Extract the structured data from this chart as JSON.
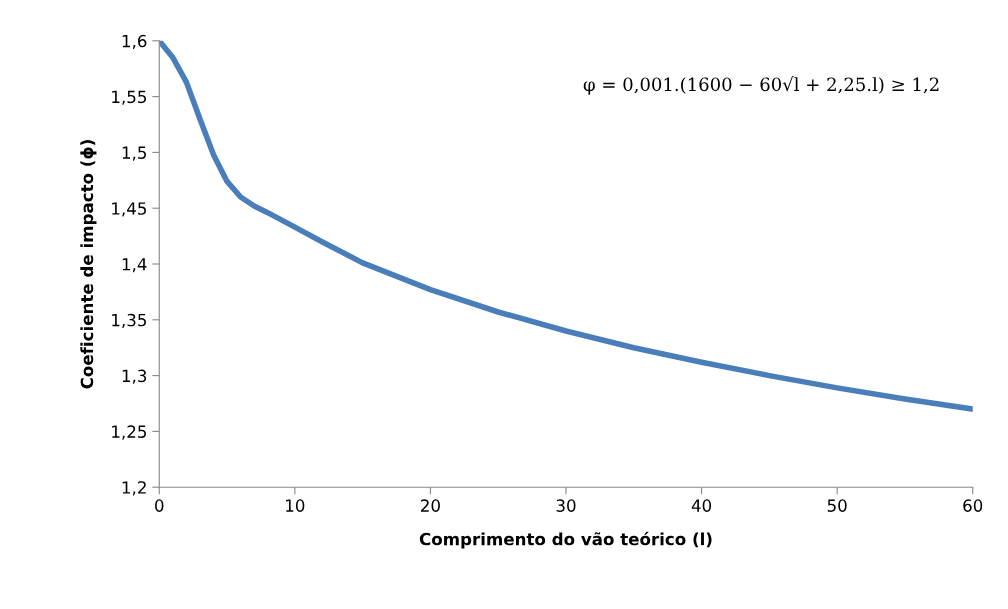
{
  "chart_data": {
    "type": "line",
    "x": [
      0,
      1,
      2,
      3,
      4,
      5,
      6,
      7,
      8,
      10,
      12,
      15,
      20,
      25,
      30,
      35,
      40,
      45,
      50,
      55,
      60
    ],
    "series": [
      {
        "color": "#4a7ebb",
        "values": [
          1.6,
          1.585,
          1.563,
          1.53,
          1.498,
          1.474,
          1.46,
          1.452,
          1.446,
          1.433,
          1.42,
          1.401,
          1.377,
          1.357,
          1.34,
          1.325,
          1.312,
          1.3,
          1.289,
          1.279,
          1.27
        ]
      }
    ],
    "xlabel": "Comprimento do vão teórico (l)",
    "ylabel": "Coeficiente de impacto (ϕ)",
    "annotations": [
      "φ = 0,001.(1600 − 60√l + 2,25.l) ≥ 1,2"
    ],
    "xlim": [
      0,
      60
    ],
    "xticks": [
      0,
      10,
      20,
      30,
      40,
      50,
      60
    ],
    "ylim": [
      1.2,
      1.6
    ],
    "yticks": [
      {
        "value": 1.2,
        "label": "1,2"
      },
      {
        "value": 1.25,
        "label": "1,25"
      },
      {
        "value": 1.3,
        "label": "1,3"
      },
      {
        "value": 1.35,
        "label": "1,35"
      },
      {
        "value": 1.4,
        "label": "1,4"
      },
      {
        "value": 1.45,
        "label": "1,45"
      },
      {
        "value": 1.5,
        "label": "1,5"
      },
      {
        "value": 1.55,
        "label": "1,55"
      },
      {
        "value": 1.6,
        "label": "1,6"
      }
    ],
    "grid": false,
    "legend": false,
    "marker": "none",
    "line_style": "solid"
  }
}
